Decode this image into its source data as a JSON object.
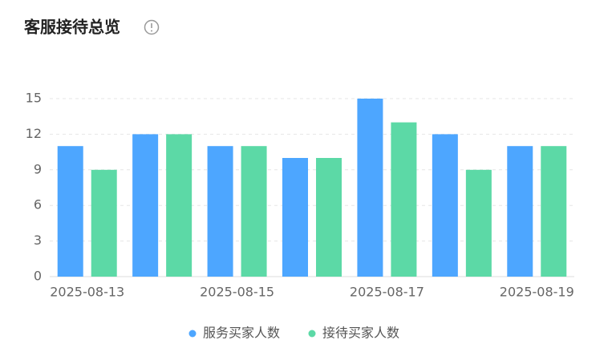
{
  "chart_data": {
    "type": "bar",
    "title": "客服接待总览",
    "categories": [
      "2025-08-13",
      null,
      "2025-08-15",
      null,
      "2025-08-17",
      null,
      "2025-08-19"
    ],
    "series": [
      {
        "name": "服务买家人数",
        "color": "#4da6ff",
        "values": [
          11,
          12,
          11,
          10,
          15,
          12,
          11
        ]
      },
      {
        "name": "接待买家人数",
        "color": "#5cd9a6",
        "values": [
          9,
          12,
          11,
          10,
          13,
          9,
          11
        ]
      }
    ],
    "ylim": [
      0,
      15
    ],
    "yticks": [
      0,
      3,
      6,
      9,
      12,
      15
    ],
    "grid": true
  }
}
